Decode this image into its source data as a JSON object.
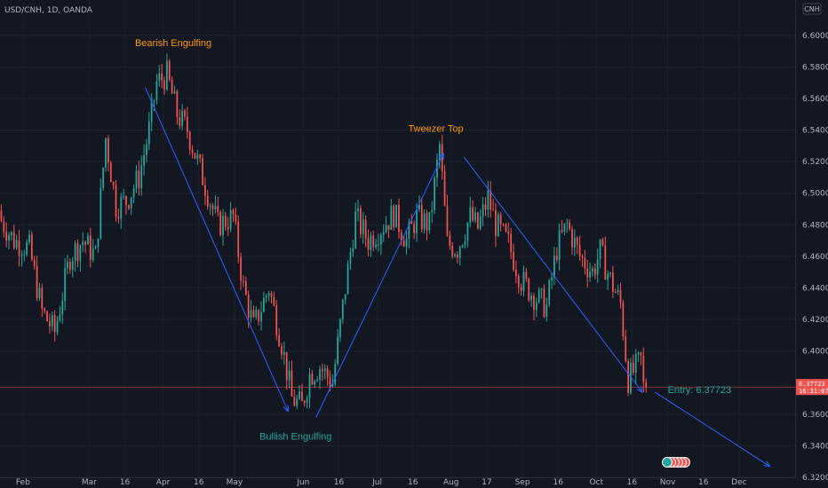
{
  "symbol_line": "USD/CNH, 1D, OANDA",
  "currency_badge": "CNH",
  "colors": {
    "background": "#131722",
    "grid": "#1e222d",
    "up": "#26a69a",
    "down": "#ef5350",
    "arrow": "#2962ff",
    "annotation_orange": "#ff9800",
    "annotation_teal": "#26a69a",
    "entry_line": "#ef5350"
  },
  "chart_data": {
    "type": "candlestick",
    "ylim": [
      6.32,
      6.61
    ],
    "xlim": [
      0,
      312
    ],
    "y_ticks": [
      "6.60000",
      "6.58000",
      "6.56000",
      "6.54000",
      "6.52000",
      "6.50000",
      "6.48000",
      "6.46000",
      "6.44000",
      "6.42000",
      "6.40000",
      "6.36000",
      "6.34000",
      "6.32000"
    ],
    "x_ticks": [
      {
        "label": "Feb",
        "x": 9
      },
      {
        "label": "Mar",
        "x": 35
      },
      {
        "label": "16",
        "x": 49
      },
      {
        "label": "Apr",
        "x": 64
      },
      {
        "label": "16",
        "x": 78
      },
      {
        "label": "May",
        "x": 92
      },
      {
        "label": "Jun",
        "x": 119
      },
      {
        "label": "16",
        "x": 133
      },
      {
        "label": "Jul",
        "x": 148
      },
      {
        "label": "16",
        "x": 162
      },
      {
        "label": "Aug",
        "x": 177
      },
      {
        "label": "17",
        "x": 191
      },
      {
        "label": "Sep",
        "x": 205
      },
      {
        "label": "16",
        "x": 219
      },
      {
        "label": "Oct",
        "x": 234
      },
      {
        "label": "16",
        "x": 248
      },
      {
        "label": "Nov",
        "x": 262
      },
      {
        "label": "16",
        "x": 276
      },
      {
        "label": "Dec",
        "x": 290
      }
    ],
    "anchors": [
      [
        0,
        6.485
      ],
      [
        6,
        6.47
      ],
      [
        12,
        6.465
      ],
      [
        17,
        6.425
      ],
      [
        22,
        6.412
      ],
      [
        28,
        6.46
      ],
      [
        33,
        6.47
      ],
      [
        38,
        6.46
      ],
      [
        42,
        6.535
      ],
      [
        46,
        6.492
      ],
      [
        50,
        6.495
      ],
      [
        55,
        6.51
      ],
      [
        59,
        6.54
      ],
      [
        62,
        6.57
      ],
      [
        66,
        6.575
      ],
      [
        70,
        6.55
      ],
      [
        74,
        6.54
      ],
      [
        80,
        6.51
      ],
      [
        86,
        6.48
      ],
      [
        92,
        6.485
      ],
      [
        96,
        6.44
      ],
      [
        100,
        6.415
      ],
      [
        106,
        6.44
      ],
      [
        111,
        6.405
      ],
      [
        115,
        6.37
      ],
      [
        119,
        6.365
      ],
      [
        122,
        6.385
      ],
      [
        126,
        6.39
      ],
      [
        131,
        6.38
      ],
      [
        136,
        6.44
      ],
      [
        140,
        6.485
      ],
      [
        145,
        6.47
      ],
      [
        150,
        6.478
      ],
      [
        155,
        6.487
      ],
      [
        160,
        6.47
      ],
      [
        164,
        6.485
      ],
      [
        169,
        6.48
      ],
      [
        173,
        6.53
      ],
      [
        176,
        6.468
      ],
      [
        180,
        6.465
      ],
      [
        185,
        6.485
      ],
      [
        188,
        6.478
      ],
      [
        192,
        6.497
      ],
      [
        195,
        6.48
      ],
      [
        200,
        6.468
      ],
      [
        205,
        6.445
      ],
      [
        210,
        6.435
      ],
      [
        215,
        6.428
      ],
      [
        219,
        6.465
      ],
      [
        223,
        6.48
      ],
      [
        228,
        6.46
      ],
      [
        233,
        6.45
      ],
      [
        236,
        6.463
      ],
      [
        240,
        6.445
      ],
      [
        244,
        6.43
      ],
      [
        247,
        6.382
      ],
      [
        252,
        6.394
      ],
      [
        253,
        6.377
      ]
    ],
    "entry_price": 6.37723,
    "entry_label": "Entry: 6.37723",
    "annotations": [
      {
        "text": "Bearish Engulfing",
        "x": 68,
        "y": 6.593,
        "color": "#ff9800"
      },
      {
        "text": "Tweezer Top",
        "x": 171,
        "y": 6.539,
        "color": "#ff9800"
      },
      {
        "text": "Bullish Engulfing",
        "x": 116,
        "y": 6.344,
        "color": "#26a69a"
      }
    ],
    "arrows": [
      {
        "from": [
          57,
          6.567
        ],
        "to": [
          113,
          6.362
        ]
      },
      {
        "from": [
          124,
          6.358
        ],
        "to": [
          174,
          6.525
        ]
      },
      {
        "from": [
          182,
          6.523
        ],
        "to": [
          252,
          6.374
        ]
      },
      {
        "from": [
          257,
          6.374
        ],
        "to": [
          302,
          6.327
        ]
      }
    ],
    "price_tag": {
      "line1": "6.37723",
      "line2": "16:31:07"
    }
  }
}
